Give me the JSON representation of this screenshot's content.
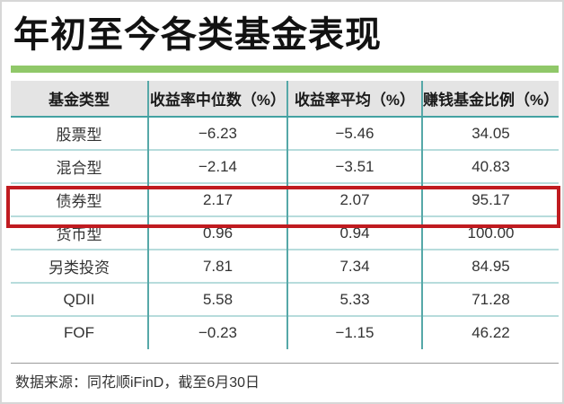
{
  "title": "年初至今各类基金表现",
  "colors": {
    "green_bar": "#90c869",
    "header_bg": "#e4e4e4",
    "header_border_teal": "#43a2a2",
    "row_line_teal": "#b7dcdc",
    "column_line_teal": "#56a8a8",
    "highlight_red": "#c01b20",
    "title_color": "#121212"
  },
  "table": {
    "headers": [
      "基金类型",
      "收益率中位数（%）",
      "收益率平均（%）",
      "赚钱基金比例（%）"
    ],
    "rows": [
      {
        "type": "股票型",
        "median": "−6.23",
        "mean": "−5.46",
        "pct": "34.05",
        "highlighted": false
      },
      {
        "type": "混合型",
        "median": "−2.14",
        "mean": "−3.51",
        "pct": "40.83",
        "highlighted": false
      },
      {
        "type": "债券型",
        "median": "2.17",
        "mean": "2.07",
        "pct": "95.17",
        "highlighted": true
      },
      {
        "type": "货币型",
        "median": "0.96",
        "mean": "0.94",
        "pct": "100.00",
        "highlighted": false
      },
      {
        "type": "另类投资",
        "median": "7.81",
        "mean": "7.34",
        "pct": "84.95",
        "highlighted": false
      },
      {
        "type": "QDII",
        "median": "5.58",
        "mean": "5.33",
        "pct": "71.28",
        "highlighted": false
      },
      {
        "type": "FOF",
        "median": "−0.23",
        "mean": "−1.15",
        "pct": "46.22",
        "highlighted": false
      }
    ]
  },
  "footer": {
    "source_note": "数据来源：同花顺iFinD，截至6月30日"
  },
  "chart_data": {
    "type": "table",
    "title": "年初至今各类基金表现",
    "columns": [
      "基金类型",
      "收益率中位数（%）",
      "收益率平均（%）",
      "赚钱基金比例（%）"
    ],
    "rows": [
      [
        "股票型",
        -6.23,
        -5.46,
        34.05
      ],
      [
        "混合型",
        -2.14,
        -3.51,
        40.83
      ],
      [
        "债券型",
        2.17,
        2.07,
        95.17
      ],
      [
        "货币型",
        0.96,
        0.94,
        100.0
      ],
      [
        "另类投资",
        7.81,
        7.34,
        84.95
      ],
      [
        "QDII",
        5.58,
        5.33,
        71.28
      ],
      [
        "FOF",
        -0.23,
        -1.15,
        46.22
      ]
    ],
    "highlighted_row": "债券型",
    "source": "数据来源：同花顺iFinD，截至6月30日"
  }
}
